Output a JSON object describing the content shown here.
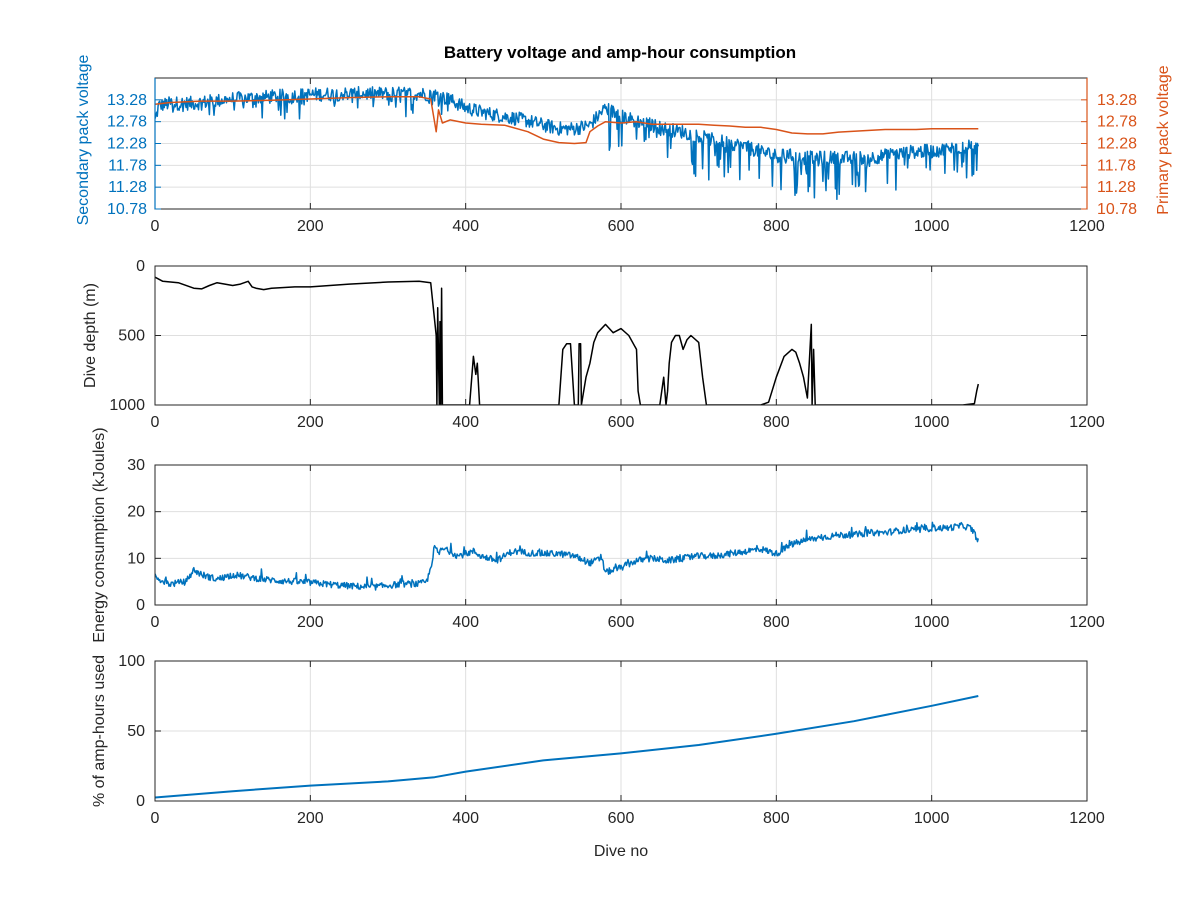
{
  "figure": {
    "title": "Battery voltage and amp-hour consumption",
    "colors": {
      "blue": "#0072BD",
      "orange": "#D95319",
      "black": "#000000",
      "grid": "#DFDFDF",
      "axis": "#262626"
    }
  },
  "chart_data": [
    {
      "type": "line",
      "title": "Battery voltage and amp-hour consumption",
      "xlabel": "",
      "xlim": [
        0,
        1200
      ],
      "xticks": [
        "0",
        "200",
        "400",
        "600",
        "800",
        "1000",
        "1200"
      ],
      "ylabel_left": "Secondary pack voltage",
      "ylabel_right": "Primary pack voltage",
      "ylim": [
        10.78,
        13.78
      ],
      "yticks_left": [
        "10.78",
        "11.28",
        "11.78",
        "12.28",
        "12.78",
        "13.28"
      ],
      "yticks_right": [
        "10.78",
        "11.28",
        "11.78",
        "12.28",
        "12.78",
        "13.28"
      ],
      "grid": true,
      "series": [
        {
          "axis": "left",
          "color": "#0072BD",
          "noisy": true,
          "x": [
            0,
            5,
            20,
            50,
            100,
            150,
            200,
            250,
            300,
            340,
            360,
            380,
            400,
            420,
            450,
            480,
            500,
            520,
            540,
            560,
            580,
            590,
            600,
            620,
            640,
            660,
            680,
            700,
            720,
            740,
            760,
            780,
            800,
            820,
            840,
            860,
            880,
            900,
            920,
            940,
            960,
            980,
            1000,
            1020,
            1040,
            1060
          ],
          "y": [
            12.8,
            13.15,
            13.2,
            13.2,
            13.3,
            13.35,
            13.4,
            13.42,
            13.42,
            13.42,
            13.4,
            13.28,
            13.1,
            13.0,
            12.9,
            12.8,
            12.7,
            12.62,
            12.62,
            12.7,
            13.1,
            13.0,
            12.9,
            12.8,
            12.7,
            12.6,
            12.55,
            12.45,
            12.35,
            12.3,
            12.2,
            12.1,
            12.0,
            12.0,
            11.95,
            11.95,
            11.95,
            11.95,
            11.95,
            12.0,
            12.05,
            12.1,
            12.1,
            12.15,
            12.2,
            12.2
          ]
        },
        {
          "axis": "right",
          "color": "#D95319",
          "noisy": false,
          "x": [
            0,
            20,
            60,
            100,
            150,
            200,
            250,
            300,
            340,
            355,
            362,
            365,
            370,
            380,
            400,
            420,
            450,
            480,
            500,
            520,
            540,
            555,
            560,
            570,
            580,
            600,
            620,
            640,
            660,
            680,
            700,
            720,
            740,
            760,
            780,
            800,
            820,
            840,
            860,
            880,
            900,
            920,
            940,
            960,
            980,
            1000,
            1020,
            1040,
            1060
          ],
          "y": [
            13.18,
            13.22,
            13.25,
            13.25,
            13.27,
            13.3,
            13.33,
            13.35,
            13.35,
            13.3,
            12.55,
            13.05,
            12.75,
            12.82,
            12.75,
            12.72,
            12.7,
            12.55,
            12.38,
            12.3,
            12.28,
            12.3,
            12.55,
            12.68,
            12.78,
            12.75,
            12.78,
            12.72,
            12.72,
            12.72,
            12.72,
            12.7,
            12.68,
            12.65,
            12.65,
            12.6,
            12.52,
            12.5,
            12.5,
            12.54,
            12.56,
            12.58,
            12.6,
            12.6,
            12.6,
            12.62,
            12.62,
            12.62,
            12.62
          ]
        }
      ]
    },
    {
      "type": "line",
      "xlabel": "",
      "ylabel": "Dive depth (m)",
      "xlim": [
        0,
        1200
      ],
      "ylim": [
        0,
        1000
      ],
      "y_reversed": true,
      "xticks": [
        "0",
        "200",
        "400",
        "600",
        "800",
        "1000",
        "1200"
      ],
      "yticks": [
        "0",
        "500",
        "1000"
      ],
      "grid": true,
      "series": [
        {
          "color": "#000000",
          "x": [
            0,
            10,
            30,
            50,
            60,
            70,
            80,
            100,
            110,
            120,
            125,
            130,
            140,
            150,
            180,
            200,
            250,
            300,
            340,
            355,
            362,
            363,
            364,
            366,
            367,
            368,
            369,
            370,
            372,
            380,
            400,
            405,
            410,
            413,
            415,
            418,
            425,
            450,
            500,
            520,
            525,
            530,
            535,
            540,
            545,
            546,
            548,
            549,
            555,
            560,
            565,
            570,
            580,
            590,
            600,
            610,
            620,
            622,
            625,
            630,
            640,
            650,
            655,
            658,
            660,
            662,
            665,
            670,
            675,
            680,
            685,
            690,
            700,
            705,
            710,
            715,
            720,
            750,
            780,
            790,
            800,
            810,
            820,
            825,
            830,
            835,
            840,
            845,
            846,
            848,
            850,
            852,
            860,
            900,
            950,
            1000,
            1040,
            1055,
            1058,
            1060
          ],
          "y": [
            80,
            110,
            120,
            160,
            165,
            140,
            120,
            140,
            130,
            110,
            150,
            160,
            170,
            160,
            150,
            150,
            130,
            115,
            110,
            120,
            500,
            1000,
            300,
            1000,
            400,
            1000,
            160,
            1000,
            1000,
            1000,
            1000,
            1000,
            650,
            780,
            700,
            1000,
            1000,
            1000,
            1000,
            1000,
            600,
            560,
            560,
            1000,
            1000,
            560,
            560,
            1000,
            800,
            700,
            550,
            480,
            420,
            480,
            450,
            500,
            600,
            900,
            1000,
            1000,
            1000,
            1000,
            800,
            1000,
            900,
            700,
            550,
            500,
            500,
            600,
            530,
            500,
            550,
            800,
            1000,
            1000,
            1000,
            1000,
            1000,
            980,
            800,
            650,
            600,
            620,
            700,
            800,
            950,
            420,
            1000,
            600,
            1000,
            1000,
            1000,
            1000,
            1000,
            1000,
            1000,
            990,
            900,
            850
          ]
        }
      ]
    },
    {
      "type": "line",
      "xlabel": "",
      "ylabel": "Energy consumption (kJoules)",
      "xlim": [
        0,
        1200
      ],
      "ylim": [
        0,
        30
      ],
      "xticks": [
        "0",
        "200",
        "400",
        "600",
        "800",
        "1000",
        "1200"
      ],
      "yticks": [
        "0",
        "10",
        "20",
        "30"
      ],
      "grid": true,
      "series": [
        {
          "color": "#0072BD",
          "noisy": true,
          "x": [
            0,
            10,
            20,
            40,
            50,
            60,
            80,
            100,
            120,
            140,
            160,
            200,
            240,
            280,
            300,
            320,
            340,
            350,
            355,
            360,
            365,
            370,
            380,
            390,
            400,
            410,
            420,
            440,
            450,
            460,
            480,
            500,
            520,
            540,
            560,
            575,
            580,
            600,
            620,
            640,
            660,
            680,
            700,
            720,
            740,
            760,
            780,
            800,
            820,
            840,
            860,
            880,
            900,
            920,
            940,
            960,
            980,
            1000,
            1020,
            1040,
            1050,
            1060
          ],
          "y": [
            6.5,
            5.0,
            4.5,
            5.0,
            7.5,
            6.5,
            5.5,
            6.5,
            6.0,
            5.5,
            5.2,
            4.8,
            4.2,
            3.8,
            4.2,
            4.5,
            4.5,
            5.0,
            8.0,
            12.5,
            11.0,
            12.0,
            11.5,
            10.5,
            11.0,
            11.5,
            10.5,
            9.5,
            10.5,
            11.5,
            11.2,
            11.0,
            11.0,
            10.5,
            9.0,
            10.0,
            7.0,
            8.0,
            9.5,
            10.0,
            9.5,
            10.0,
            10.5,
            10.5,
            11.0,
            11.5,
            12.0,
            11.0,
            13.0,
            14.0,
            14.5,
            15.0,
            15.0,
            15.5,
            15.5,
            16.0,
            16.0,
            16.5,
            16.5,
            17.0,
            16.5,
            14.0
          ]
        }
      ]
    },
    {
      "type": "line",
      "xlabel": "Dive no",
      "ylabel": "% of amp-hours used",
      "xlim": [
        0,
        1200
      ],
      "ylim": [
        0,
        100
      ],
      "xticks": [
        "0",
        "200",
        "400",
        "600",
        "800",
        "1000",
        "1200"
      ],
      "yticks": [
        "0",
        "50",
        "100"
      ],
      "grid": true,
      "series": [
        {
          "color": "#0072BD",
          "x": [
            0,
            100,
            200,
            300,
            360,
            400,
            500,
            600,
            700,
            800,
            900,
            1000,
            1060
          ],
          "y": [
            2.5,
            7,
            11,
            14,
            17,
            21,
            29,
            34,
            40,
            48,
            57,
            68,
            75
          ]
        }
      ]
    }
  ]
}
